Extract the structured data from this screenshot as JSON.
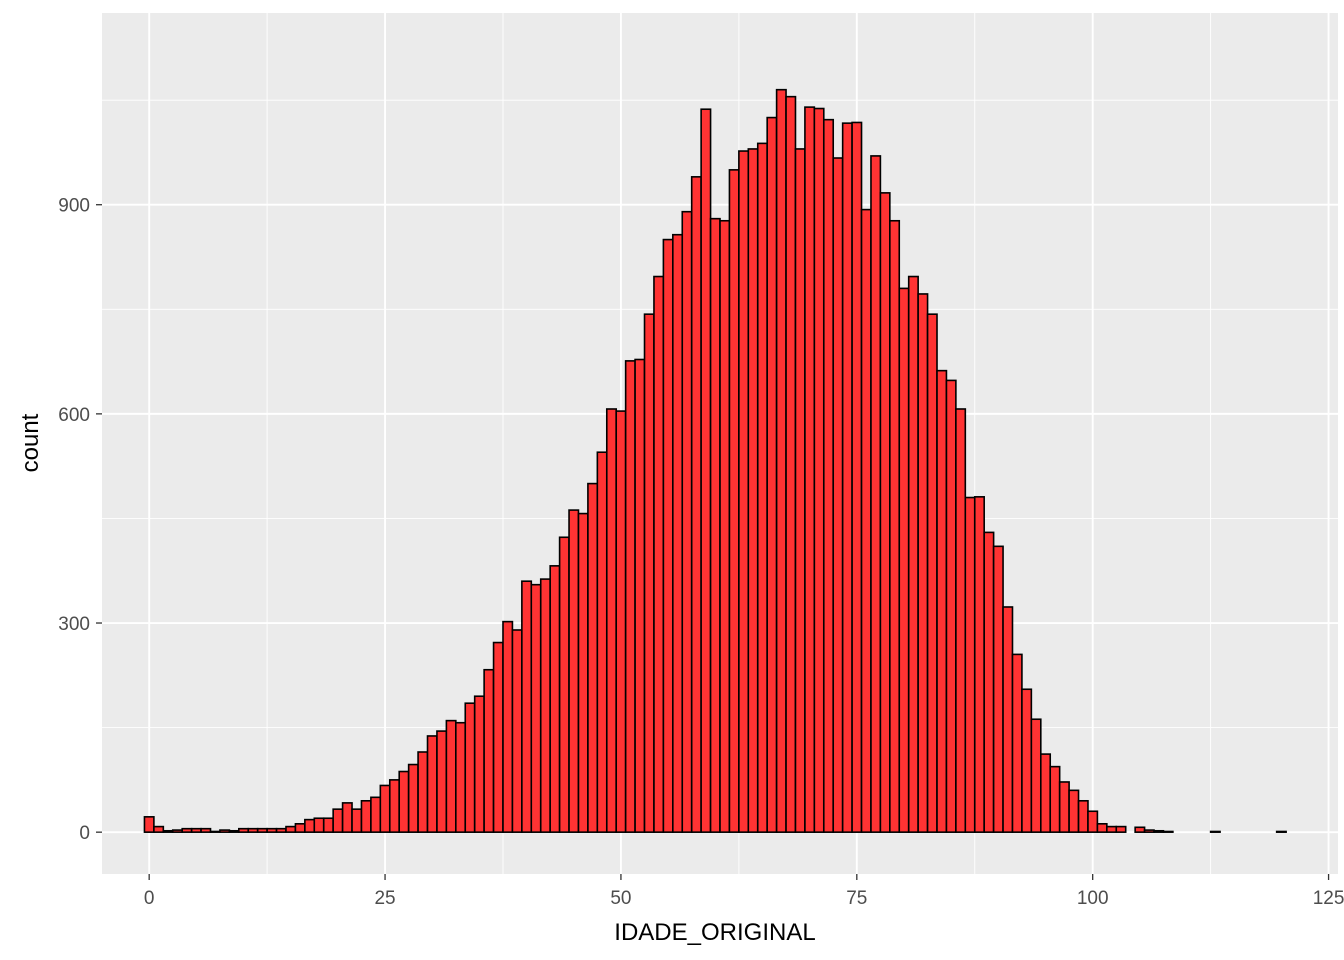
{
  "chart_data": {
    "type": "bar",
    "subtype": "histogram",
    "xlabel": "IDADE_ORIGINAL",
    "ylabel": "count",
    "xlim": [
      -5,
      126
    ],
    "ylim": [
      -60,
      1175
    ],
    "x_ticks": [
      0,
      25,
      50,
      75,
      100,
      125
    ],
    "y_ticks": [
      0,
      300,
      600,
      900
    ],
    "bin_width": 1,
    "bins": [
      {
        "x": 0,
        "value": 22
      },
      {
        "x": 1,
        "value": 8
      },
      {
        "x": 2,
        "value": 2
      },
      {
        "x": 3,
        "value": 3
      },
      {
        "x": 4,
        "value": 5
      },
      {
        "x": 5,
        "value": 5
      },
      {
        "x": 6,
        "value": 5
      },
      {
        "x": 7,
        "value": 1
      },
      {
        "x": 8,
        "value": 3
      },
      {
        "x": 9,
        "value": 2
      },
      {
        "x": 10,
        "value": 5
      },
      {
        "x": 11,
        "value": 5
      },
      {
        "x": 12,
        "value": 5
      },
      {
        "x": 13,
        "value": 5
      },
      {
        "x": 14,
        "value": 5
      },
      {
        "x": 15,
        "value": 8
      },
      {
        "x": 16,
        "value": 12
      },
      {
        "x": 17,
        "value": 18
      },
      {
        "x": 18,
        "value": 20
      },
      {
        "x": 19,
        "value": 20
      },
      {
        "x": 20,
        "value": 33
      },
      {
        "x": 21,
        "value": 42
      },
      {
        "x": 22,
        "value": 33
      },
      {
        "x": 23,
        "value": 45
      },
      {
        "x": 24,
        "value": 50
      },
      {
        "x": 25,
        "value": 67
      },
      {
        "x": 26,
        "value": 75
      },
      {
        "x": 27,
        "value": 87
      },
      {
        "x": 28,
        "value": 97
      },
      {
        "x": 29,
        "value": 115
      },
      {
        "x": 30,
        "value": 138
      },
      {
        "x": 31,
        "value": 145
      },
      {
        "x": 32,
        "value": 160
      },
      {
        "x": 33,
        "value": 157
      },
      {
        "x": 34,
        "value": 185
      },
      {
        "x": 35,
        "value": 195
      },
      {
        "x": 36,
        "value": 233
      },
      {
        "x": 37,
        "value": 272
      },
      {
        "x": 38,
        "value": 302
      },
      {
        "x": 39,
        "value": 290
      },
      {
        "x": 40,
        "value": 360
      },
      {
        "x": 41,
        "value": 355
      },
      {
        "x": 42,
        "value": 363
      },
      {
        "x": 43,
        "value": 382
      },
      {
        "x": 44,
        "value": 423
      },
      {
        "x": 45,
        "value": 462
      },
      {
        "x": 46,
        "value": 457
      },
      {
        "x": 47,
        "value": 500
      },
      {
        "x": 48,
        "value": 545
      },
      {
        "x": 49,
        "value": 607
      },
      {
        "x": 50,
        "value": 604
      },
      {
        "x": 51,
        "value": 676
      },
      {
        "x": 52,
        "value": 678
      },
      {
        "x": 53,
        "value": 743
      },
      {
        "x": 54,
        "value": 797
      },
      {
        "x": 55,
        "value": 850
      },
      {
        "x": 56,
        "value": 857
      },
      {
        "x": 57,
        "value": 890
      },
      {
        "x": 58,
        "value": 940
      },
      {
        "x": 59,
        "value": 1037
      },
      {
        "x": 60,
        "value": 880
      },
      {
        "x": 61,
        "value": 877
      },
      {
        "x": 62,
        "value": 950
      },
      {
        "x": 63,
        "value": 977
      },
      {
        "x": 64,
        "value": 980
      },
      {
        "x": 65,
        "value": 988
      },
      {
        "x": 66,
        "value": 1025
      },
      {
        "x": 67,
        "value": 1065
      },
      {
        "x": 68,
        "value": 1055
      },
      {
        "x": 69,
        "value": 980
      },
      {
        "x": 70,
        "value": 1040
      },
      {
        "x": 71,
        "value": 1038
      },
      {
        "x": 72,
        "value": 1022
      },
      {
        "x": 73,
        "value": 967
      },
      {
        "x": 74,
        "value": 1017
      },
      {
        "x": 75,
        "value": 1018
      },
      {
        "x": 76,
        "value": 893
      },
      {
        "x": 77,
        "value": 970
      },
      {
        "x": 78,
        "value": 917
      },
      {
        "x": 79,
        "value": 877
      },
      {
        "x": 80,
        "value": 780
      },
      {
        "x": 81,
        "value": 797
      },
      {
        "x": 82,
        "value": 772
      },
      {
        "x": 83,
        "value": 743
      },
      {
        "x": 84,
        "value": 662
      },
      {
        "x": 85,
        "value": 648
      },
      {
        "x": 86,
        "value": 607
      },
      {
        "x": 87,
        "value": 480
      },
      {
        "x": 88,
        "value": 481
      },
      {
        "x": 89,
        "value": 430
      },
      {
        "x": 90,
        "value": 410
      },
      {
        "x": 91,
        "value": 323
      },
      {
        "x": 92,
        "value": 255
      },
      {
        "x": 93,
        "value": 205
      },
      {
        "x": 94,
        "value": 162
      },
      {
        "x": 95,
        "value": 112
      },
      {
        "x": 96,
        "value": 94
      },
      {
        "x": 97,
        "value": 72
      },
      {
        "x": 98,
        "value": 60
      },
      {
        "x": 99,
        "value": 45
      },
      {
        "x": 100,
        "value": 30
      },
      {
        "x": 101,
        "value": 12
      },
      {
        "x": 102,
        "value": 8
      },
      {
        "x": 103,
        "value": 8
      },
      {
        "x": 105,
        "value": 7
      },
      {
        "x": 106,
        "value": 3
      },
      {
        "x": 107,
        "value": 2
      },
      {
        "x": 108,
        "value": 1
      },
      {
        "x": 113,
        "value": 1
      },
      {
        "x": 120,
        "value": 1
      }
    ],
    "grid": true,
    "fill_color": "#ff3333",
    "edge_color": "#000000",
    "panel_background": "#ebebeb",
    "grid_color": "#ffffff"
  }
}
